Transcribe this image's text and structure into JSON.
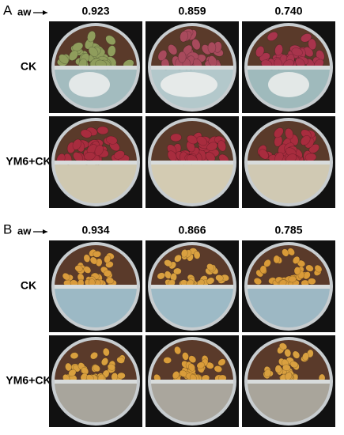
{
  "panels": [
    {
      "label": "A",
      "aw_label": "aw",
      "columns": [
        "0.923",
        "0.859",
        "0.740"
      ],
      "rows": [
        "CK",
        "YM6+CK"
      ]
    },
    {
      "label": "B",
      "aw_label": "aw",
      "columns": [
        "0.934",
        "0.866",
        "0.785"
      ],
      "rows": [
        "CK",
        "YM6+CK"
      ]
    }
  ]
}
